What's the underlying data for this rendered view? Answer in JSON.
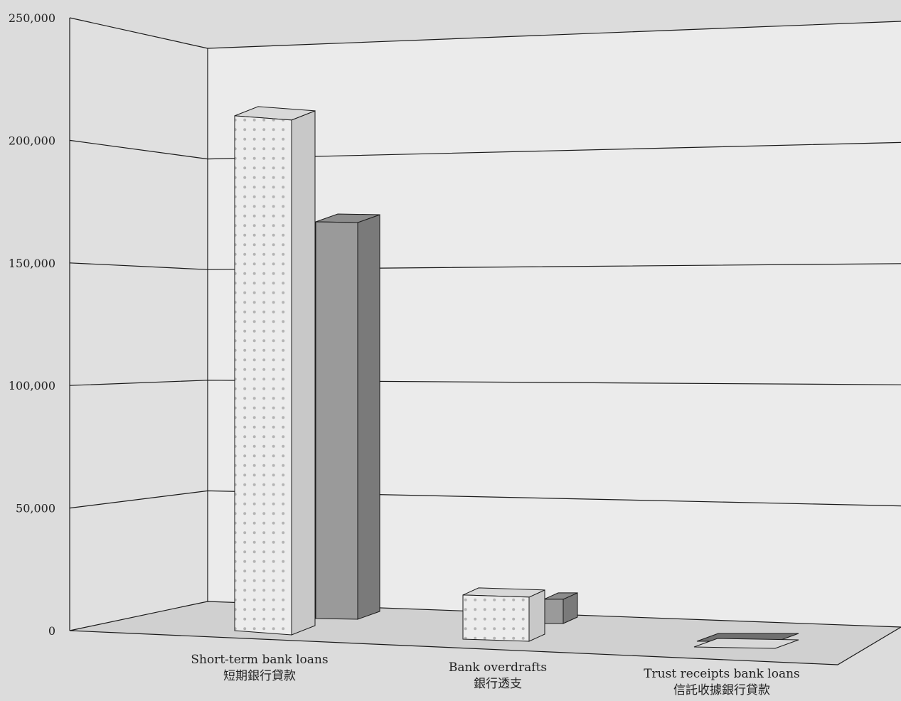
{
  "colors": {
    "series_1": "#ececec",
    "series_1_dots": "#b4b4b4",
    "series_2": "#9a9a9a",
    "floor": "#d0d0d0",
    "back_wall": "#ebebeb",
    "side_wall": "#e0e0e0",
    "background": "#dcdcdc",
    "ink": "#1a1a1a"
  },
  "chart_data": {
    "type": "bar",
    "title": "",
    "xlabel": "",
    "ylabel": "",
    "ylim": [
      0,
      250000
    ],
    "yticks": [
      "0",
      "50,000",
      "100,000",
      "150,000",
      "200,000",
      "250,000"
    ],
    "categories": [
      {
        "en": "Short-term bank loans",
        "zh": "短期銀行貸款"
      },
      {
        "en": "Bank overdrafts",
        "zh": "銀行透支"
      },
      {
        "en": "Trust receipts bank loans",
        "zh": "信託收據銀行貸款"
      }
    ],
    "series": [
      {
        "values": [
          210000,
          18000,
          500
        ]
      },
      {
        "values": [
          180000,
          11000,
          300
        ]
      }
    ],
    "grid": true,
    "legend": "none"
  }
}
